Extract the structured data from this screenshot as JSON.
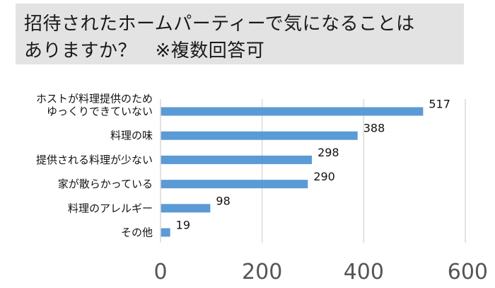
{
  "title": {
    "line1": "招待されたホームパーティーで気になることは",
    "line2": "ありますか？　※複数回答可"
  },
  "chart_data": {
    "type": "bar",
    "orientation": "horizontal",
    "categories": [
      [
        "ホストが料理提供のため",
        "ゆっくりできていない"
      ],
      [
        "料理の味"
      ],
      [
        "提供される料理が少ない"
      ],
      [
        "家が散らかっている"
      ],
      [
        "料理のアレルギー"
      ],
      [
        "その他"
      ]
    ],
    "values": [
      517,
      388,
      298,
      290,
      98,
      19
    ],
    "xlim": [
      0,
      600
    ],
    "xticks": [
      0,
      200,
      400,
      600
    ],
    "grid": "vertical",
    "bar_color": "#5b9bd5",
    "grid_color": "#d9d9d9",
    "title": "",
    "xlabel": "",
    "ylabel": ""
  }
}
